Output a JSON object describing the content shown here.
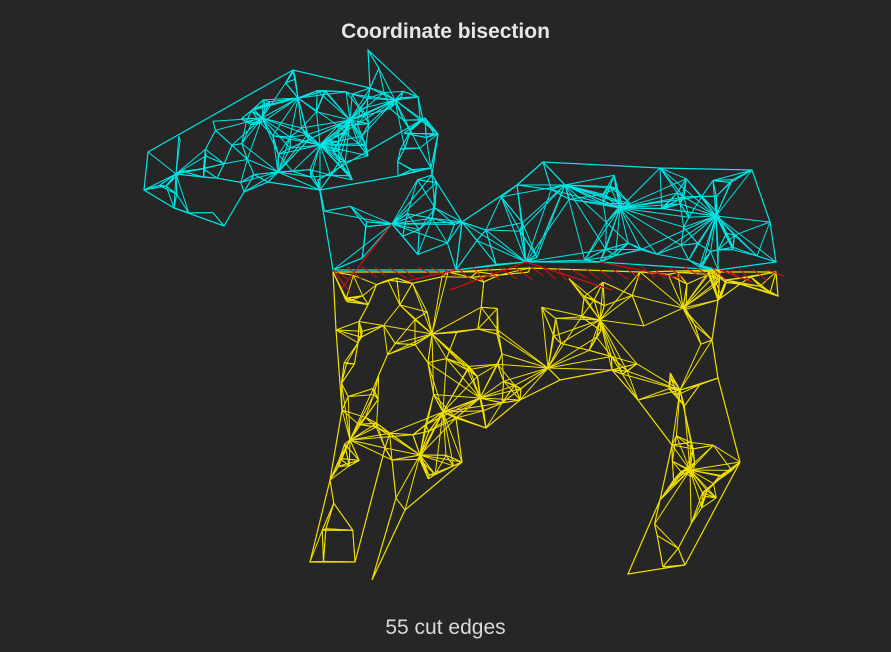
{
  "figure": {
    "title": "Coordinate bisection",
    "caption": "55 cut edges",
    "cut_edge_count": 55
  },
  "colors": {
    "background": "#262626",
    "top_partition": "#00e5e5",
    "bottom_partition": "#f0e000",
    "cut_edges": "#d01010"
  }
}
